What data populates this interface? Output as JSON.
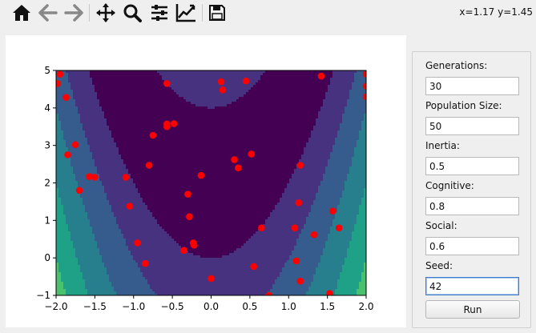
{
  "toolbar": {
    "buttons": [
      {
        "icon": "home-icon"
      },
      {
        "icon": "back-arrow-icon"
      },
      {
        "icon": "forward-arrow-icon"
      },
      {
        "icon": "pan-icon"
      },
      {
        "icon": "zoom-icon"
      },
      {
        "icon": "configure-subplots-icon"
      },
      {
        "icon": "edit-axis-icon"
      },
      {
        "icon": "save-icon"
      }
    ],
    "coords": "x=1.17 y=1.45"
  },
  "params": {
    "generations": {
      "label": "Generations:",
      "value": "30"
    },
    "population": {
      "label": "Population Size:",
      "value": "50"
    },
    "inertia": {
      "label": "Inertia:",
      "value": "0.5"
    },
    "cognitive": {
      "label": "Cognitive:",
      "value": "0.8"
    },
    "social": {
      "label": "Social:",
      "value": "0.6"
    },
    "seed": {
      "label": "Seed:",
      "value": "42"
    },
    "run_label": "Run"
  },
  "chart_data": {
    "type": "scatter",
    "background": "filled contour plot (viridis)",
    "xlim": [
      -2,
      2
    ],
    "ylim": [
      -1,
      5
    ],
    "xticks": [
      "−2.0",
      "−1.5",
      "−1.0",
      "−0.5",
      "0.0",
      "0.5",
      "1.0",
      "1.5",
      "2.0"
    ],
    "yticks": [
      "−1",
      "0",
      "1",
      "2",
      "3",
      "4",
      "5"
    ],
    "point_color": "#ff0000",
    "points": [
      [
        -1.95,
        4.9
      ],
      [
        -1.98,
        4.65
      ],
      [
        -1.87,
        4.28
      ],
      [
        -1.85,
        2.75
      ],
      [
        -1.75,
        3.02
      ],
      [
        -1.7,
        1.8
      ],
      [
        -1.57,
        2.17
      ],
      [
        -1.5,
        2.15
      ],
      [
        -1.1,
        2.15
      ],
      [
        -1.05,
        1.38
      ],
      [
        -0.95,
        0.4
      ],
      [
        -0.85,
        -0.15
      ],
      [
        -0.8,
        2.47
      ],
      [
        -0.75,
        3.27
      ],
      [
        -0.57,
        4.65
      ],
      [
        -0.57,
        3.57
      ],
      [
        -0.57,
        3.5
      ],
      [
        -0.48,
        3.58
      ],
      [
        -0.35,
        0.2
      ],
      [
        -0.3,
        1.7
      ],
      [
        -0.28,
        1.1
      ],
      [
        -0.23,
        0.4
      ],
      [
        -0.22,
        0.34
      ],
      [
        -0.13,
        2.2
      ],
      [
        0.0,
        -0.55
      ],
      [
        0.13,
        4.7
      ],
      [
        0.15,
        4.48
      ],
      [
        0.45,
        4.72
      ],
      [
        0.52,
        2.77
      ],
      [
        0.3,
        2.62
      ],
      [
        0.35,
        2.4
      ],
      [
        0.55,
        -0.23
      ],
      [
        0.65,
        0.8
      ],
      [
        0.75,
        -1.0
      ],
      [
        1.08,
        0.8
      ],
      [
        1.1,
        -0.08
      ],
      [
        1.13,
        1.47
      ],
      [
        1.15,
        -0.62
      ],
      [
        1.15,
        2.47
      ],
      [
        1.33,
        0.62
      ],
      [
        1.42,
        4.85
      ],
      [
        1.53,
        -0.95
      ],
      [
        1.57,
        1.25
      ],
      [
        1.65,
        0.8
      ],
      [
        2.0,
        4.9
      ],
      [
        2.0,
        4.58
      ],
      [
        2.0,
        4.3
      ]
    ]
  }
}
